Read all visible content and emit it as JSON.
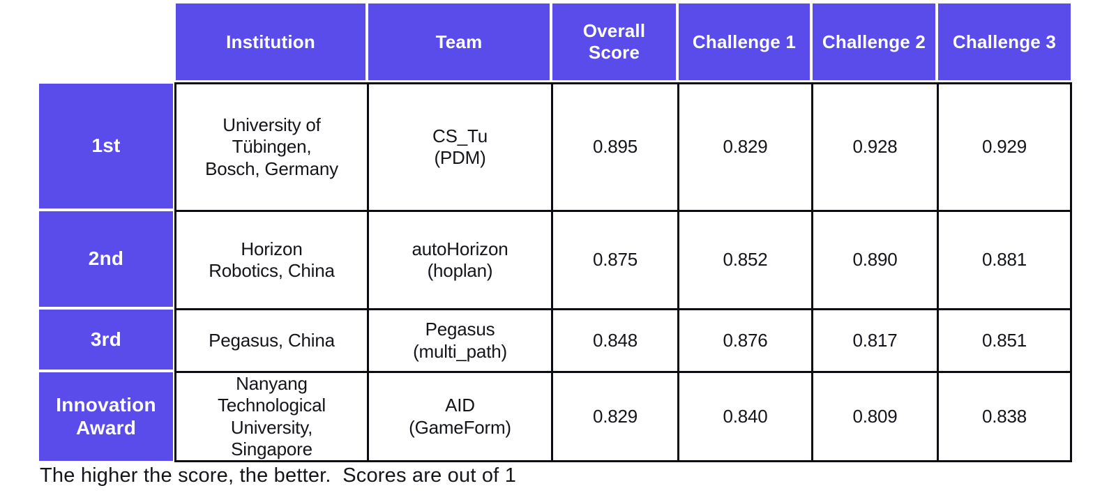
{
  "colors": {
    "accent_purple": "#5a4cea",
    "grid_line_black": "#0a0c12",
    "header_text": "#ffffff",
    "body_text": "#14151b",
    "background": "#ffffff"
  },
  "chart_data": {
    "type": "table",
    "title": "",
    "columns": [
      "",
      "Institution",
      "Team",
      "Overall Score",
      "Challenge 1",
      "Challenge 2",
      "Challenge 3"
    ],
    "rows": [
      {
        "rank": "1st",
        "institution": "University of Tübingen, Bosch, Germany",
        "team": "CS_Tu (PDM)",
        "overall_score": 0.895,
        "challenge_1": 0.829,
        "challenge_2": 0.928,
        "challenge_3": 0.929
      },
      {
        "rank": "2nd",
        "institution": "Horizon Robotics, China",
        "team": "autoHorizon (hoplan)",
        "overall_score": 0.875,
        "challenge_1": 0.852,
        "challenge_2": 0.89,
        "challenge_3": 0.881
      },
      {
        "rank": "3rd",
        "institution": "Pegasus, China",
        "team": "Pegasus (multi_path)",
        "overall_score": 0.848,
        "challenge_1": 0.876,
        "challenge_2": 0.817,
        "challenge_3": 0.851
      },
      {
        "rank": "Innovation Award",
        "institution": "Nanyang Technological University, Singapore",
        "team": "AID (GameForm)",
        "overall_score": 0.829,
        "challenge_1": 0.84,
        "challenge_2": 0.809,
        "challenge_3": 0.838
      }
    ],
    "note": "The higher the score, the better.  Scores are out of 1"
  },
  "table": {
    "headers": {
      "institution": "Institution",
      "team": "Team",
      "overall": "Overall\nScore",
      "c1": "Challenge 1",
      "c2": "Challenge 2",
      "c3": "Challenge 3"
    },
    "rows": [
      {
        "label": "1st",
        "institution": "University of\nTübingen,\nBosch, Germany",
        "team": "CS_Tu\n(PDM)",
        "scores": [
          "0.895",
          "0.829",
          "0.928",
          "0.929"
        ]
      },
      {
        "label": "2nd",
        "institution": "Horizon\nRobotics, China",
        "team": "autoHorizon\n(hoplan)",
        "scores": [
          "0.875",
          "0.852",
          "0.890",
          "0.881"
        ]
      },
      {
        "label": "3rd",
        "institution": "Pegasus, China",
        "team": "Pegasus\n(multi_path)",
        "scores": [
          "0.848",
          "0.876",
          "0.817",
          "0.851"
        ]
      },
      {
        "label": "Innovation\nAward",
        "institution": "Nanyang\nTechnological\nUniversity,\nSingapore",
        "team": "AID\n(GameForm)",
        "scores": [
          "0.829",
          "0.840",
          "0.809",
          "0.838"
        ]
      }
    ]
  },
  "footer": {
    "note": "The higher the score, the better.  Scores are out of 1"
  }
}
